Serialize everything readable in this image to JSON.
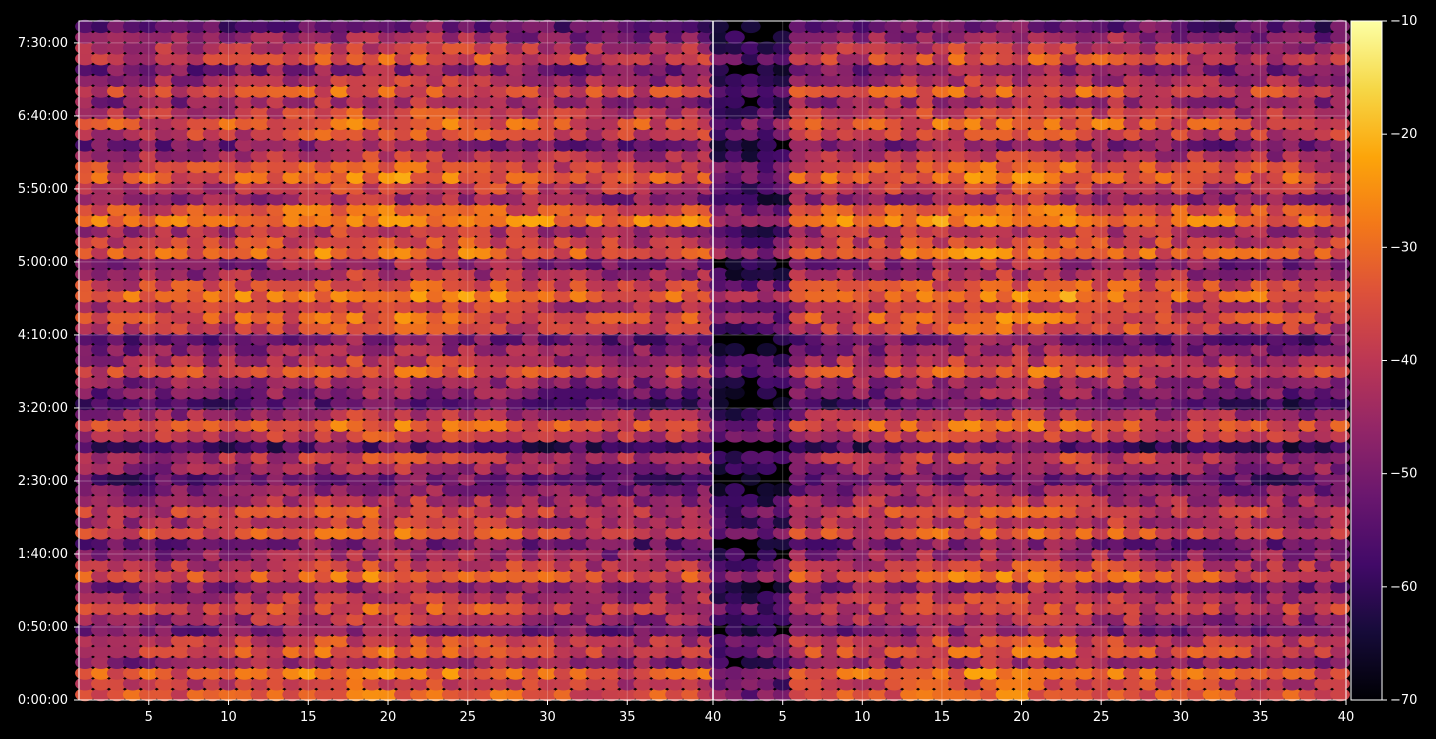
{
  "chart_data": {
    "type": "heatmap",
    "colormap": "inferno",
    "background": "#000000",
    "panels": [
      {
        "x_range": [
          1,
          40
        ],
        "x_ticks": [
          5,
          10,
          15,
          20,
          25,
          30,
          35
        ],
        "x_ticklabels": [
          "5",
          "10",
          "15",
          "20",
          "25",
          "30",
          "35"
        ],
        "x_end_label": "40"
      },
      {
        "x_range": [
          1,
          40
        ],
        "x_ticks": [
          5,
          10,
          15,
          20,
          25,
          30,
          35
        ],
        "x_ticklabels": [
          "5",
          "10",
          "15",
          "20",
          "25",
          "30",
          "35"
        ],
        "x_end_label": "40"
      }
    ],
    "y_range_seconds": [
      0,
      27900
    ],
    "y_ticks_seconds": [
      0,
      3000,
      6000,
      9000,
      12000,
      15000,
      18000,
      21000,
      24000,
      27000
    ],
    "y_ticklabels": [
      "0:00:00",
      "0:50:00",
      "1:40:00",
      "2:30:00",
      "3:20:00",
      "4:10:00",
      "5:00:00",
      "5:50:00",
      "6:40:00",
      "7:30:00"
    ],
    "row_count": 63,
    "colorbar": {
      "range": [
        -70,
        -10
      ],
      "ticks": [
        -70,
        -60,
        -50,
        -40,
        -30,
        -20,
        -10
      ],
      "ticklabels": [
        "−70",
        "−60",
        "−50",
        "−40",
        "−30",
        "−20",
        "−10"
      ]
    },
    "grid": true,
    "approx_row_levels": [
      -36,
      -40,
      -34,
      -48,
      -38,
      -42,
      -52,
      -46,
      -40,
      -44,
      -50,
      -36,
      -42,
      -48,
      -54,
      -38,
      -44,
      -40,
      -46,
      -50,
      -56,
      -48,
      -44,
      -60,
      -42,
      -36,
      -46,
      -58,
      -52,
      -48,
      -38,
      -44,
      -50,
      -54,
      -40,
      -36,
      -42,
      -32,
      -38,
      -46,
      -50,
      -34,
      -40,
      -44,
      -30,
      -36,
      -48,
      -42,
      -34,
      -38,
      -44,
      -52,
      -40,
      -36,
      -42,
      -48,
      -38,
      -46,
      -52,
      -40,
      -44,
      -50,
      -56
    ]
  }
}
